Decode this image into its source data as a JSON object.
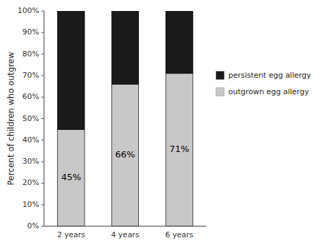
{
  "chart_data": {
    "type": "bar",
    "stacked": true,
    "y_label": "Percent of children who outgrew",
    "categories": [
      "2 years",
      "4 years",
      "6 years"
    ],
    "series": [
      {
        "name": "outgrown egg allergy",
        "color": "#c8c8c8",
        "values": [
          45,
          66,
          71
        ],
        "value_labels": [
          "45%",
          "66%",
          "71%"
        ],
        "data_labels": true
      },
      {
        "name": "persistent egg allergy",
        "color": "#1a1a1a",
        "values": [
          55,
          34,
          29
        ]
      }
    ],
    "ylim": [
      0,
      100
    ],
    "yticks": [
      {
        "value": 0,
        "label": "0%"
      },
      {
        "value": 10,
        "label": "10%"
      },
      {
        "value": 20,
        "label": "20%"
      },
      {
        "value": 30,
        "label": "30%"
      },
      {
        "value": 40,
        "label": "40%"
      },
      {
        "value": 50,
        "label": "50%"
      },
      {
        "value": 60,
        "label": "60%"
      },
      {
        "value": 70,
        "label": "70%"
      },
      {
        "value": 80,
        "label": "80%"
      },
      {
        "value": 90,
        "label": "90%"
      },
      {
        "value": 100,
        "label": "100%"
      }
    ],
    "grid": false,
    "legend": "right"
  }
}
